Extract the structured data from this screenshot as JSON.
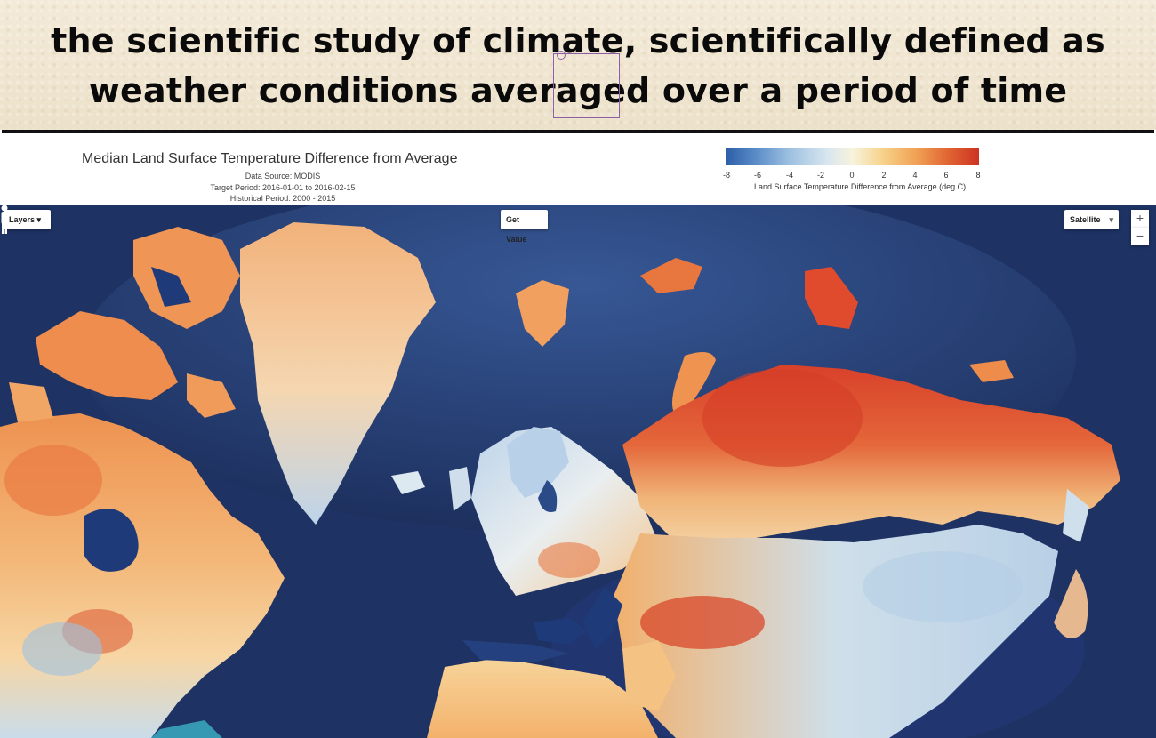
{
  "slide": {
    "headline_line1": "the scientific study of climate, scientifically defined as",
    "headline_line2": "weather conditions averaged over a period of time"
  },
  "map": {
    "title": "Median Land Surface Temperature Difference from Average",
    "data_source": "Data Source: MODIS",
    "target_period": "Target Period: 2016-01-01 to 2016-02-15",
    "historical_period": "Historical Period: 2000 - 2015",
    "colorbar": {
      "ticks": [
        "-8",
        "-6",
        "-4",
        "-2",
        "0",
        "2",
        "4",
        "6",
        "8"
      ],
      "label": "Land Surface Temperature Difference from Average (deg C)",
      "min": -8,
      "max": 8,
      "colors": [
        "#2c5ea8",
        "#9cc0e0",
        "#f7f3dc",
        "#f0a255",
        "#cd3322"
      ]
    },
    "controls": {
      "layers": "Layers",
      "get_value": "Get Value",
      "map_type": "Satellite",
      "zoom_in": "+",
      "zoom_out": "−"
    },
    "colors": {
      "ocean_deep": "#1b2f5e",
      "ocean_shelf": "#3a5c9a",
      "warm": "#e1542c",
      "cool": "#b9d2e8",
      "neutral": "#f6c98a"
    }
  }
}
